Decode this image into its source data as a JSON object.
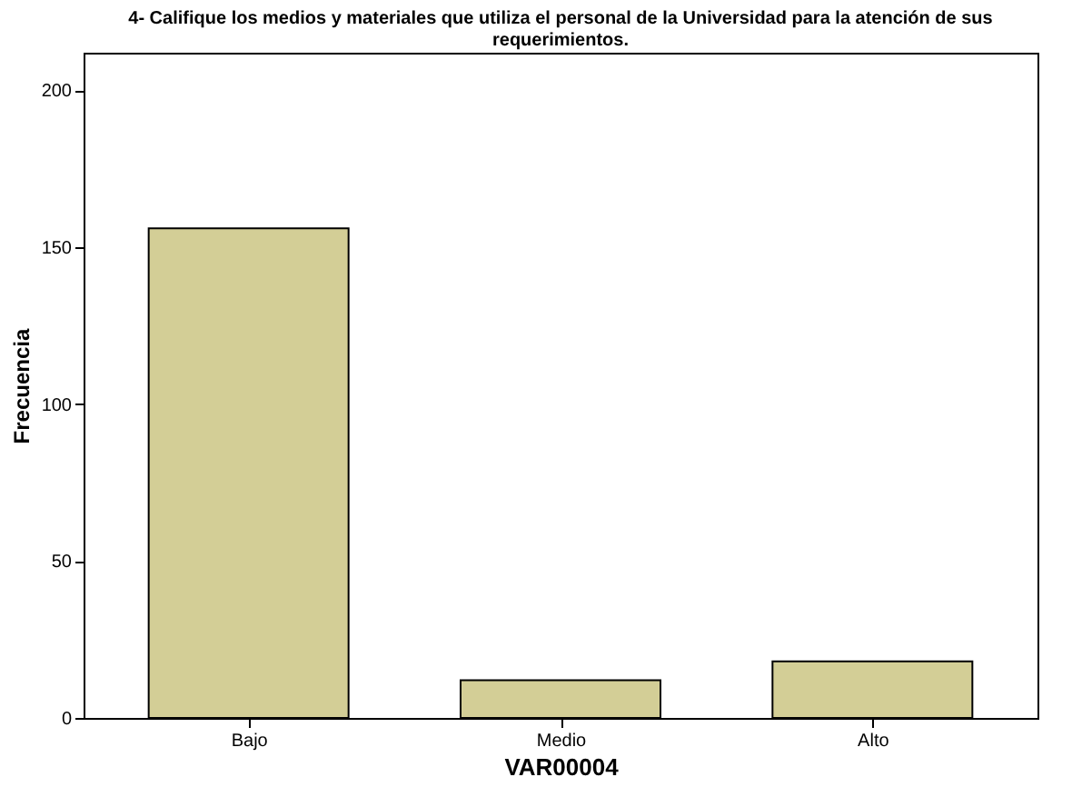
{
  "chart_data": {
    "type": "bar",
    "title": "4- Califique los medios y materiales que utiliza el personal de la Universidad para la atención de sus requerimientos.",
    "categories": [
      "Bajo",
      "Medio",
      "Alto"
    ],
    "values": [
      156,
      12,
      18
    ],
    "color": "#d3ce96",
    "xlabel": "VAR00004",
    "ylabel": "Frecuencia",
    "ylim": [
      0,
      212
    ],
    "yticks": [
      0,
      50,
      100,
      150,
      200
    ],
    "grid": false
  }
}
